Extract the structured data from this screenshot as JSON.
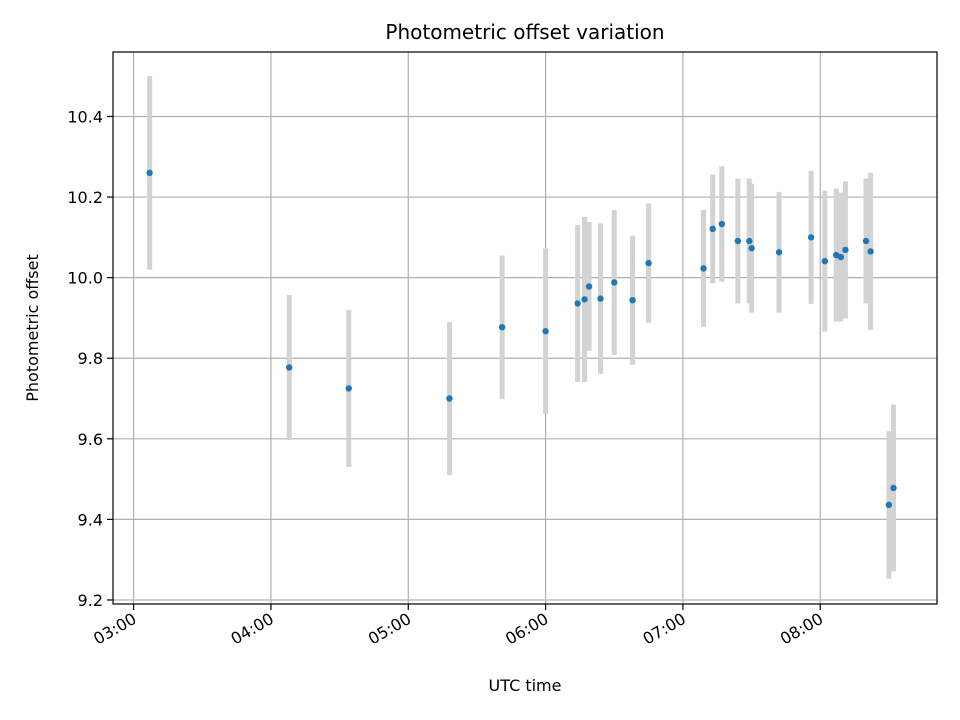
{
  "chart_data": {
    "type": "scatter",
    "title": "Photometric offset variation",
    "xlabel": "UTC time",
    "ylabel": "Photometric offset",
    "xlim": [
      "02:51",
      "08:51"
    ],
    "ylim": [
      9.19,
      10.56
    ],
    "grid": true,
    "colors": {
      "point": "#1f77b4",
      "errorbar": "#d3d3d3",
      "grid": "#b0b0b0"
    },
    "x_ticks": [
      "03:00",
      "04:00",
      "05:00",
      "06:00",
      "07:00",
      "08:00"
    ],
    "y_ticks": [
      "9.2",
      "9.4",
      "9.6",
      "9.8",
      "10.0",
      "10.2",
      "10.4"
    ],
    "points": [
      {
        "x": "03:07",
        "y": 10.26,
        "err": 0.24
      },
      {
        "x": "04:08",
        "y": 9.777,
        "err": 0.18
      },
      {
        "x": "04:34",
        "y": 9.725,
        "err": 0.195
      },
      {
        "x": "05:18",
        "y": 9.7,
        "err": 0.19
      },
      {
        "x": "05:41",
        "y": 9.877,
        "err": 0.178
      },
      {
        "x": "06:00",
        "y": 9.867,
        "err": 0.205
      },
      {
        "x": "06:14",
        "y": 9.936,
        "err": 0.195
      },
      {
        "x": "06:17",
        "y": 9.946,
        "err": 0.205
      },
      {
        "x": "06:19",
        "y": 9.978,
        "err": 0.16
      },
      {
        "x": "06:24",
        "y": 9.948,
        "err": 0.187
      },
      {
        "x": "06:30",
        "y": 9.988,
        "err": 0.18
      },
      {
        "x": "06:38",
        "y": 9.944,
        "err": 0.16
      },
      {
        "x": "06:45",
        "y": 10.036,
        "err": 0.148
      },
      {
        "x": "07:09",
        "y": 10.023,
        "err": 0.145
      },
      {
        "x": "07:13",
        "y": 10.121,
        "err": 0.135
      },
      {
        "x": "07:17",
        "y": 10.133,
        "err": 0.143
      },
      {
        "x": "07:24",
        "y": 10.091,
        "err": 0.155
      },
      {
        "x": "07:29",
        "y": 10.091,
        "err": 0.155
      },
      {
        "x": "07:30",
        "y": 10.073,
        "err": 0.16
      },
      {
        "x": "07:42",
        "y": 10.063,
        "err": 0.15
      },
      {
        "x": "07:56",
        "y": 10.1,
        "err": 0.165
      },
      {
        "x": "08:02",
        "y": 10.041,
        "err": 0.175
      },
      {
        "x": "08:07",
        "y": 10.056,
        "err": 0.165
      },
      {
        "x": "08:09",
        "y": 10.051,
        "err": 0.16
      },
      {
        "x": "08:11",
        "y": 10.069,
        "err": 0.17
      },
      {
        "x": "08:20",
        "y": 10.091,
        "err": 0.155
      },
      {
        "x": "08:22",
        "y": 10.065,
        "err": 0.195
      },
      {
        "x": "08:30",
        "y": 9.436,
        "err": 0.183
      },
      {
        "x": "08:32",
        "y": 9.478,
        "err": 0.207
      }
    ]
  }
}
